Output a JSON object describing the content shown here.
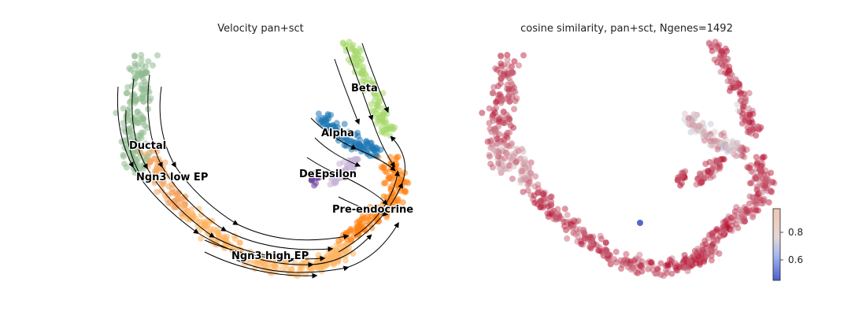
{
  "chart_data": [
    {
      "type": "scatter",
      "title": "Velocity pan+sct",
      "clusters": [
        {
          "name": "Ductal",
          "color": "#8fbc8f"
        },
        {
          "name": "Ngn3 low EP",
          "color": "#f4a460"
        },
        {
          "name": "Ngn3 high EP",
          "color": "#fdb462"
        },
        {
          "name": "Pre-endocrine",
          "color": "#ff7f0e"
        },
        {
          "name": "Beta",
          "color": "#a6d96a"
        },
        {
          "name": "Alpha",
          "color": "#1f78b4"
        },
        {
          "name": "Delta",
          "color": "#6a3d9a"
        },
        {
          "name": "Epsilon",
          "color": "#c5b0d5"
        }
      ],
      "labels": [
        "Ductal",
        "Ngn3 low EP",
        "Ngn3 high EP",
        "Pre-endocrine",
        "Beta",
        "Alpha",
        "Delta",
        "Epsilon"
      ],
      "streamlines": true,
      "axes_visible": false
    },
    {
      "type": "scatter",
      "title": "cosine similarity, pan+sct, Ngenes=1492",
      "colormap": "coolwarm",
      "colorbar": {
        "ticks": [
          "0.6",
          "0.8"
        ],
        "range": [
          0.45,
          0.97
        ],
        "low_color": "#3b4cc0",
        "mid_color": "#dddddd",
        "high_color": "#b40426"
      },
      "axes_visible": false
    }
  ]
}
